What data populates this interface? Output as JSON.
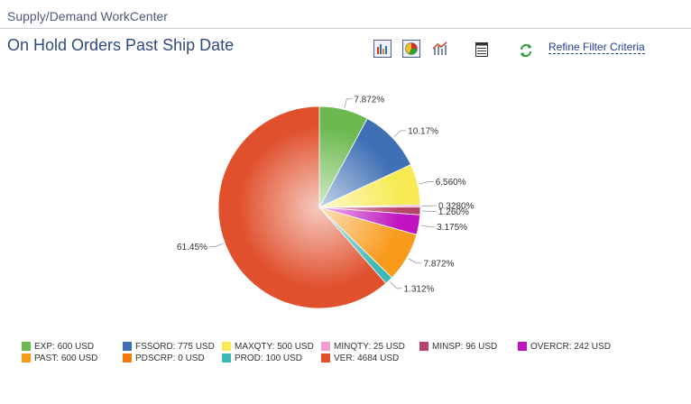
{
  "header": {
    "title": "Supply/Demand WorkCenter"
  },
  "page": {
    "title": "On Hold Orders Past Ship Date"
  },
  "toolbar": {
    "buttons": [
      {
        "icon": "bar-chart-icon"
      },
      {
        "icon": "pie-chart-icon"
      },
      {
        "icon": "line-chart-icon"
      },
      {
        "icon": "grid-icon"
      },
      {
        "icon": "refresh-icon"
      }
    ],
    "refine_label": "Refine Filter Criteria"
  },
  "chart_data": {
    "type": "pie",
    "slices": [
      {
        "name": "EXP",
        "legend": "EXP: 600 USD",
        "value": 600,
        "label": "7.872%",
        "color": "#6cb94f"
      },
      {
        "name": "FSSORD",
        "legend": "FSSORD: 775 USD",
        "value": 775,
        "label": "10.17%",
        "color": "#3f6fb5"
      },
      {
        "name": "MAXQTY",
        "legend": "MAXQTY: 500 USD",
        "value": 500,
        "label": "6.560%",
        "color": "#f7ea55"
      },
      {
        "name": "MINQTY",
        "legend": "MINQTY: 25 USD",
        "value": 25,
        "label": "0.3280%",
        "color": "#f49bd0"
      },
      {
        "name": "MINSP",
        "legend": "MINSP: 96 USD",
        "value": 96,
        "label": "1.260%",
        "color": "#b8446a"
      },
      {
        "name": "OVERCR",
        "legend": "OVERCR: 242 USD",
        "value": 242,
        "label": "3.175%",
        "color": "#c014c0"
      },
      {
        "name": "PAST",
        "legend": "PAST: 600 USD",
        "value": 600,
        "label": "7.872%",
        "color": "#f89b1c"
      },
      {
        "name": "PDSCRP",
        "legend": "PDSCRP: 0 USD",
        "value": 0,
        "label": "",
        "color": "#f07a10"
      },
      {
        "name": "PROD",
        "legend": "PROD: 100 USD",
        "value": 100,
        "label": "1.312%",
        "color": "#3fb9b5"
      },
      {
        "name": "VER",
        "legend": "VER: 4684 USD",
        "value": 4684,
        "label": "61.45%",
        "color": "#e0502d"
      }
    ]
  }
}
